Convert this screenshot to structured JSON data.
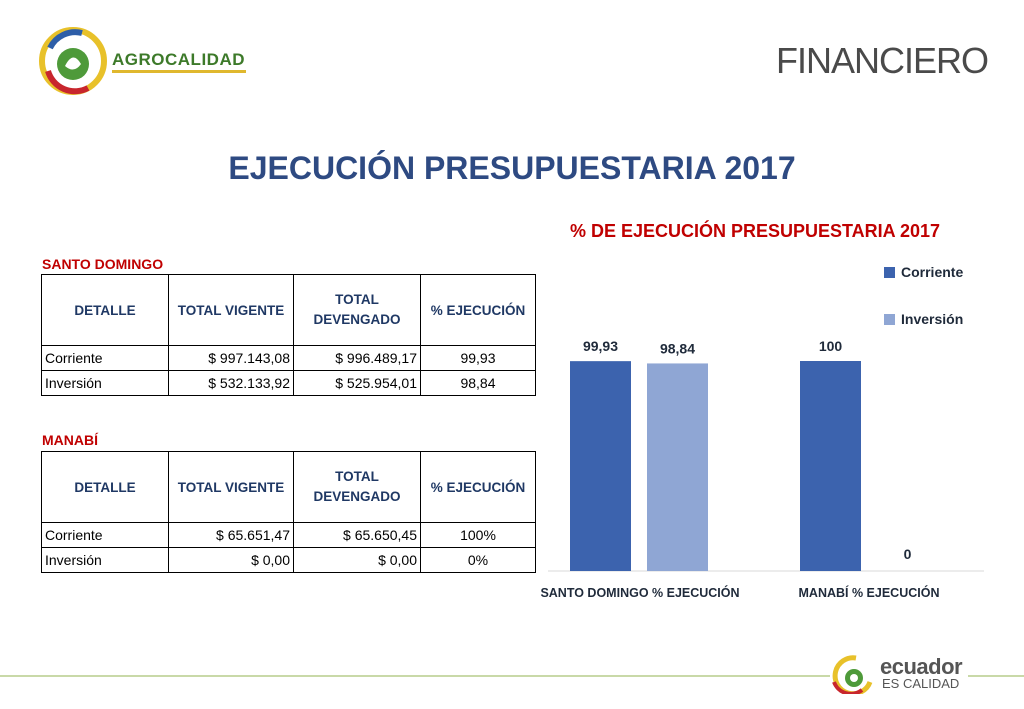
{
  "header": {
    "brand": "AGROCALIDAD",
    "section": "FINANCIERO",
    "title": "EJECUCIÓN PRESUPUESTARIA 2017"
  },
  "tables": {
    "santo_domingo": {
      "label": "SANTO DOMINGO",
      "headers": [
        "DETALLE",
        "TOTAL VIGENTE",
        "TOTAL DEVENGADO",
        "% EJECUCIÓN"
      ],
      "rows": [
        [
          "Corriente",
          "$ 997.143,08",
          "$ 996.489,17",
          "99,93"
        ],
        [
          "Inversión",
          "$ 532.133,92",
          "$ 525.954,01",
          "98,84"
        ]
      ]
    },
    "manabi": {
      "label": "MANABÍ",
      "headers": [
        "DETALLE",
        "TOTAL VIGENTE",
        "TOTAL DEVENGADO",
        "% EJECUCIÓN"
      ],
      "rows": [
        [
          "Corriente",
          "$ 65.651,47",
          "$ 65.650,45",
          "100%"
        ],
        [
          "Inversión",
          "$ 0,00",
          "$ 0,00",
          "0%"
        ]
      ]
    }
  },
  "chart_data": {
    "type": "bar",
    "title": "% DE EJECUCIÓN PRESUPUESTARIA 2017",
    "categories": [
      "SANTO DOMINGO % EJECUCIÓN",
      "MANABÍ % EJECUCIÓN"
    ],
    "series": [
      {
        "name": "Corriente",
        "values": [
          99.93,
          100
        ],
        "labels": [
          "99,93",
          "100"
        ],
        "color": "#3c63ae"
      },
      {
        "name": "Inversión",
        "values": [
          98.84,
          0
        ],
        "labels": [
          "98,84",
          "0"
        ],
        "color": "#8fa6d4"
      }
    ],
    "ylim": [
      0,
      110
    ],
    "grid": false,
    "legend": "top-right"
  },
  "footer": {
    "brand_line1": "ecuador",
    "brand_line2": "ES CALIDAD"
  }
}
